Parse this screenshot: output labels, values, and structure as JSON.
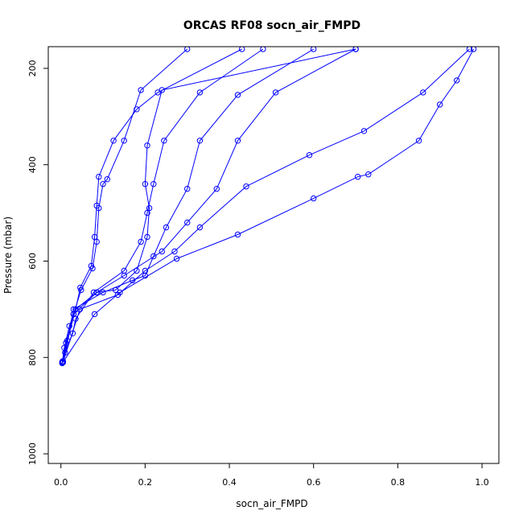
{
  "chart_data": {
    "type": "line",
    "title": "ORCAS RF08 socn_air_FMPD",
    "xlabel": "socn_air_FMPD",
    "ylabel": "Pressure (mbar)",
    "xlim": [
      -0.03,
      1.04
    ],
    "ylim": [
      1020,
      155
    ],
    "y_reversed": true,
    "grid": false,
    "legend": "none",
    "color": "#0000ff",
    "marker": "open-circle",
    "x_ticks": [
      {
        "value": 0.0,
        "label": "0.0"
      },
      {
        "value": 0.2,
        "label": "0.2"
      },
      {
        "value": 0.4,
        "label": "0.4"
      },
      {
        "value": 0.6,
        "label": "0.6"
      },
      {
        "value": 0.8,
        "label": "0.8"
      },
      {
        "value": 1.0,
        "label": "1.0"
      }
    ],
    "y_ticks": [
      {
        "value": 200,
        "label": "200"
      },
      {
        "value": 400,
        "label": "400"
      },
      {
        "value": 600,
        "label": "600"
      },
      {
        "value": 800,
        "label": "800"
      },
      {
        "value": 1000,
        "label": "1000"
      }
    ],
    "series": [
      {
        "points": [
          [
            0.003,
            810
          ],
          [
            0.01,
            790
          ],
          [
            0.028,
            750
          ],
          [
            0.035,
            720
          ],
          [
            0.078,
            665
          ],
          [
            0.15,
            620
          ],
          [
            0.19,
            560
          ],
          [
            0.205,
            500
          ],
          [
            0.22,
            440
          ],
          [
            0.245,
            350
          ],
          [
            0.33,
            250
          ],
          [
            0.48,
            160
          ]
        ]
      },
      {
        "points": [
          [
            0.003,
            812
          ],
          [
            0.008,
            780
          ],
          [
            0.02,
            735
          ],
          [
            0.03,
            710
          ],
          [
            0.048,
            660
          ],
          [
            0.075,
            615
          ],
          [
            0.085,
            560
          ],
          [
            0.09,
            490
          ],
          [
            0.1,
            440
          ],
          [
            0.11,
            430
          ],
          [
            0.15,
            350
          ],
          [
            0.19,
            245
          ],
          [
            0.3,
            160
          ]
        ]
      },
      {
        "points": [
          [
            0.004,
            808
          ],
          [
            0.012,
            770
          ],
          [
            0.035,
            700
          ],
          [
            0.046,
            655
          ],
          [
            0.072,
            610
          ],
          [
            0.08,
            550
          ],
          [
            0.085,
            485
          ],
          [
            0.09,
            425
          ],
          [
            0.125,
            350
          ],
          [
            0.18,
            285
          ],
          [
            0.23,
            250
          ],
          [
            0.43,
            160
          ]
        ]
      },
      {
        "points": [
          [
            0.005,
            808
          ],
          [
            0.015,
            765
          ],
          [
            0.035,
            700
          ],
          [
            0.085,
            665
          ],
          [
            0.13,
            660
          ],
          [
            0.18,
            620
          ],
          [
            0.205,
            550
          ],
          [
            0.21,
            490
          ],
          [
            0.2,
            440
          ],
          [
            0.205,
            360
          ],
          [
            0.24,
            245
          ],
          [
            0.7,
            160
          ]
        ]
      },
      {
        "points": [
          [
            0.005,
            810
          ],
          [
            0.03,
            700
          ],
          [
            0.1,
            665
          ],
          [
            0.17,
            640
          ],
          [
            0.2,
            630
          ],
          [
            0.22,
            590
          ],
          [
            0.25,
            530
          ],
          [
            0.3,
            450
          ],
          [
            0.33,
            350
          ],
          [
            0.42,
            255
          ],
          [
            0.6,
            160
          ]
        ]
      },
      {
        "points": [
          [
            0.005,
            810
          ],
          [
            0.03,
            710
          ],
          [
            0.085,
            665
          ],
          [
            0.15,
            630
          ],
          [
            0.24,
            580
          ],
          [
            0.3,
            520
          ],
          [
            0.37,
            450
          ],
          [
            0.42,
            350
          ],
          [
            0.51,
            250
          ],
          [
            0.7,
            160
          ]
        ]
      },
      {
        "points": [
          [
            0.005,
            810
          ],
          [
            0.045,
            700
          ],
          [
            0.135,
            670
          ],
          [
            0.2,
            620
          ],
          [
            0.27,
            580
          ],
          [
            0.33,
            530
          ],
          [
            0.44,
            445
          ],
          [
            0.59,
            380
          ],
          [
            0.72,
            330
          ],
          [
            0.86,
            250
          ],
          [
            0.97,
            160
          ]
        ]
      },
      {
        "points": [
          [
            0.005,
            810
          ],
          [
            0.08,
            710
          ],
          [
            0.14,
            665
          ],
          [
            0.275,
            595
          ],
          [
            0.42,
            545
          ],
          [
            0.6,
            470
          ],
          [
            0.705,
            425
          ],
          [
            0.73,
            420
          ],
          [
            0.85,
            350
          ],
          [
            0.9,
            275
          ],
          [
            0.94,
            225
          ],
          [
            0.98,
            160
          ]
        ]
      }
    ]
  }
}
